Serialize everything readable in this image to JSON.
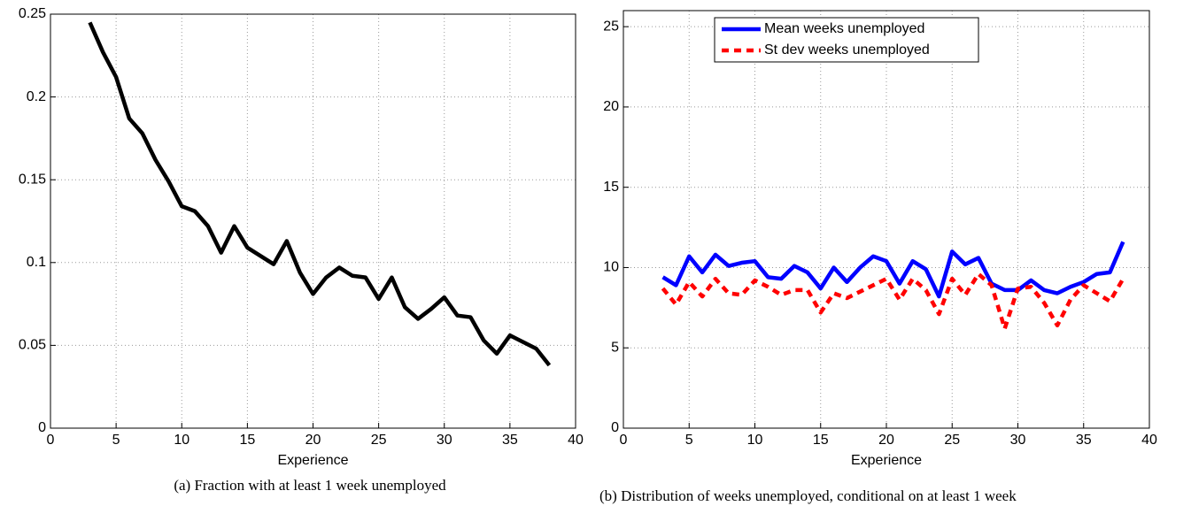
{
  "chart_data": [
    {
      "type": "line",
      "caption": "(a) Fraction with at least 1 week unemployed",
      "xlabel": "Experience",
      "x": [
        3,
        4,
        5,
        6,
        7,
        8,
        9,
        10,
        11,
        12,
        13,
        14,
        15,
        16,
        17,
        18,
        19,
        20,
        21,
        22,
        23,
        24,
        25,
        26,
        27,
        28,
        29,
        30,
        31,
        32,
        33,
        34,
        35,
        36,
        37,
        38
      ],
      "series": [
        {
          "color": "#000000",
          "linestyle": "solid",
          "values": [
            0.245,
            0.227,
            0.212,
            0.187,
            0.178,
            0.162,
            0.149,
            0.134,
            0.131,
            0.122,
            0.106,
            0.122,
            0.109,
            0.104,
            0.099,
            0.113,
            0.094,
            0.081,
            0.091,
            0.097,
            0.092,
            0.091,
            0.078,
            0.091,
            0.073,
            0.066,
            0.072,
            0.079,
            0.068,
            0.067,
            0.053,
            0.045,
            0.056,
            0.052,
            0.048,
            0.038
          ]
        }
      ],
      "xlim": [
        0,
        40
      ],
      "xticks": [
        0,
        5,
        10,
        15,
        20,
        25,
        30,
        35,
        40
      ],
      "ylim": [
        0,
        0.25
      ],
      "yticks": [
        0,
        0.05,
        0.1,
        0.15,
        0.2,
        0.25
      ],
      "grid": true
    },
    {
      "type": "line",
      "caption": "(b) Distribution of weeks unemployed, conditional on at least 1 week",
      "xlabel": "Experience",
      "x": [
        3,
        4,
        5,
        6,
        7,
        8,
        9,
        10,
        11,
        12,
        13,
        14,
        15,
        16,
        17,
        18,
        19,
        20,
        21,
        22,
        23,
        24,
        25,
        26,
        27,
        28,
        29,
        30,
        31,
        32,
        33,
        34,
        35,
        36,
        37,
        38
      ],
      "series": [
        {
          "name": "Mean weeks unemployed",
          "color": "#0000ff",
          "linestyle": "solid",
          "values": [
            9.4,
            8.9,
            10.7,
            9.7,
            10.8,
            10.1,
            10.3,
            10.4,
            9.4,
            9.3,
            10.1,
            9.7,
            8.7,
            10.0,
            9.1,
            10.0,
            10.7,
            10.4,
            9.0,
            10.4,
            9.9,
            8.2,
            11.0,
            10.2,
            10.6,
            9.0,
            8.6,
            8.6,
            9.2,
            8.6,
            8.4,
            8.8,
            9.1,
            9.6,
            9.7,
            11.6
          ]
        },
        {
          "name": "St dev weeks unemployed",
          "color": "#ff0000",
          "linestyle": "dashed",
          "values": [
            8.7,
            7.7,
            9.1,
            8.2,
            9.3,
            8.4,
            8.3,
            9.2,
            8.8,
            8.3,
            8.6,
            8.6,
            7.2,
            8.4,
            8.1,
            8.5,
            8.9,
            9.3,
            8.0,
            9.3,
            8.6,
            7.1,
            9.3,
            8.3,
            9.6,
            8.9,
            6.2,
            8.7,
            8.8,
            7.8,
            6.4,
            8.0,
            8.9,
            8.4,
            7.9,
            9.3
          ]
        }
      ],
      "xlim": [
        0,
        40
      ],
      "xticks": [
        0,
        5,
        10,
        15,
        20,
        25,
        30,
        35,
        40
      ],
      "ylim": [
        0,
        26
      ],
      "yticks": [
        0,
        5,
        10,
        15,
        20,
        25
      ],
      "grid": true,
      "legend": "upper center"
    }
  ]
}
